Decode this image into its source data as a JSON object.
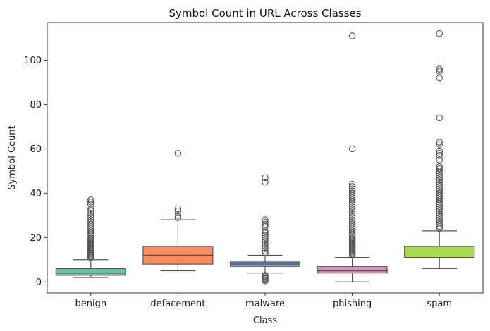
{
  "chart_data": {
    "type": "box",
    "title": "Symbol Count in URL Across Classes",
    "xlabel": "Class",
    "ylabel": "Symbol Count",
    "ylim": [
      -5,
      117
    ],
    "yticks": [
      0,
      20,
      40,
      60,
      80,
      100
    ],
    "grid": false,
    "legend": "none",
    "categories": [
      "benign",
      "defacement",
      "malware",
      "phishing",
      "spam"
    ],
    "boxes": [
      {
        "name": "benign",
        "color": "#66c2a5",
        "whisker_low": 2,
        "q1": 3,
        "median": 4,
        "q3": 6,
        "whisker_high": 10,
        "outliers": [
          11,
          11.5,
          12,
          12.5,
          13,
          13.5,
          14,
          14.5,
          15,
          15.5,
          16,
          16.5,
          17,
          17.5,
          18,
          18.5,
          19,
          19.5,
          20,
          21,
          22,
          23,
          24,
          25,
          26,
          27,
          28,
          29,
          30,
          31,
          32,
          33,
          35,
          36,
          37
        ]
      },
      {
        "name": "defacement",
        "color": "#fc8d62",
        "whisker_low": 5,
        "q1": 8,
        "median": 12,
        "q3": 16,
        "whisker_high": 28,
        "outliers": [
          29,
          30,
          32,
          33,
          58
        ]
      },
      {
        "name": "malware",
        "color": "#8da0cb",
        "whisker_low": 4,
        "q1": 7,
        "median": 8,
        "q3": 9,
        "whisker_high": 12,
        "outliers": [
          0.5,
          1,
          1.5,
          2,
          2.5,
          3,
          13,
          14,
          15,
          16,
          17,
          18,
          19,
          20,
          21,
          22,
          23,
          25,
          26,
          27,
          28,
          45,
          47
        ]
      },
      {
        "name": "phishing",
        "color": "#e78ac3",
        "whisker_low": 0,
        "q1": 4,
        "median": 5,
        "q3": 7,
        "whisker_high": 11,
        "outliers": [
          12,
          12.5,
          13,
          13.5,
          14,
          14.5,
          15,
          15.5,
          16,
          16.5,
          17,
          17.5,
          18,
          18.5,
          19,
          19.5,
          20,
          21,
          22,
          23,
          24,
          25,
          26,
          27,
          28,
          29,
          30,
          31,
          32,
          33,
          34,
          35,
          36,
          37,
          38,
          39,
          40,
          41,
          42,
          43,
          44,
          60,
          111
        ]
      },
      {
        "name": "spam",
        "color": "#a6d854",
        "whisker_low": 6,
        "q1": 11,
        "median": 11,
        "q3": 16,
        "whisker_high": 23,
        "outliers": [
          24,
          25,
          26,
          27,
          28,
          29,
          30,
          31,
          32,
          33,
          34,
          35,
          36,
          37,
          38,
          39,
          40,
          41,
          42,
          43,
          44,
          45,
          46,
          47,
          48,
          49,
          50,
          51,
          52,
          55,
          57,
          58,
          59,
          62,
          63,
          74,
          92,
          95,
          96,
          112
        ]
      }
    ]
  }
}
